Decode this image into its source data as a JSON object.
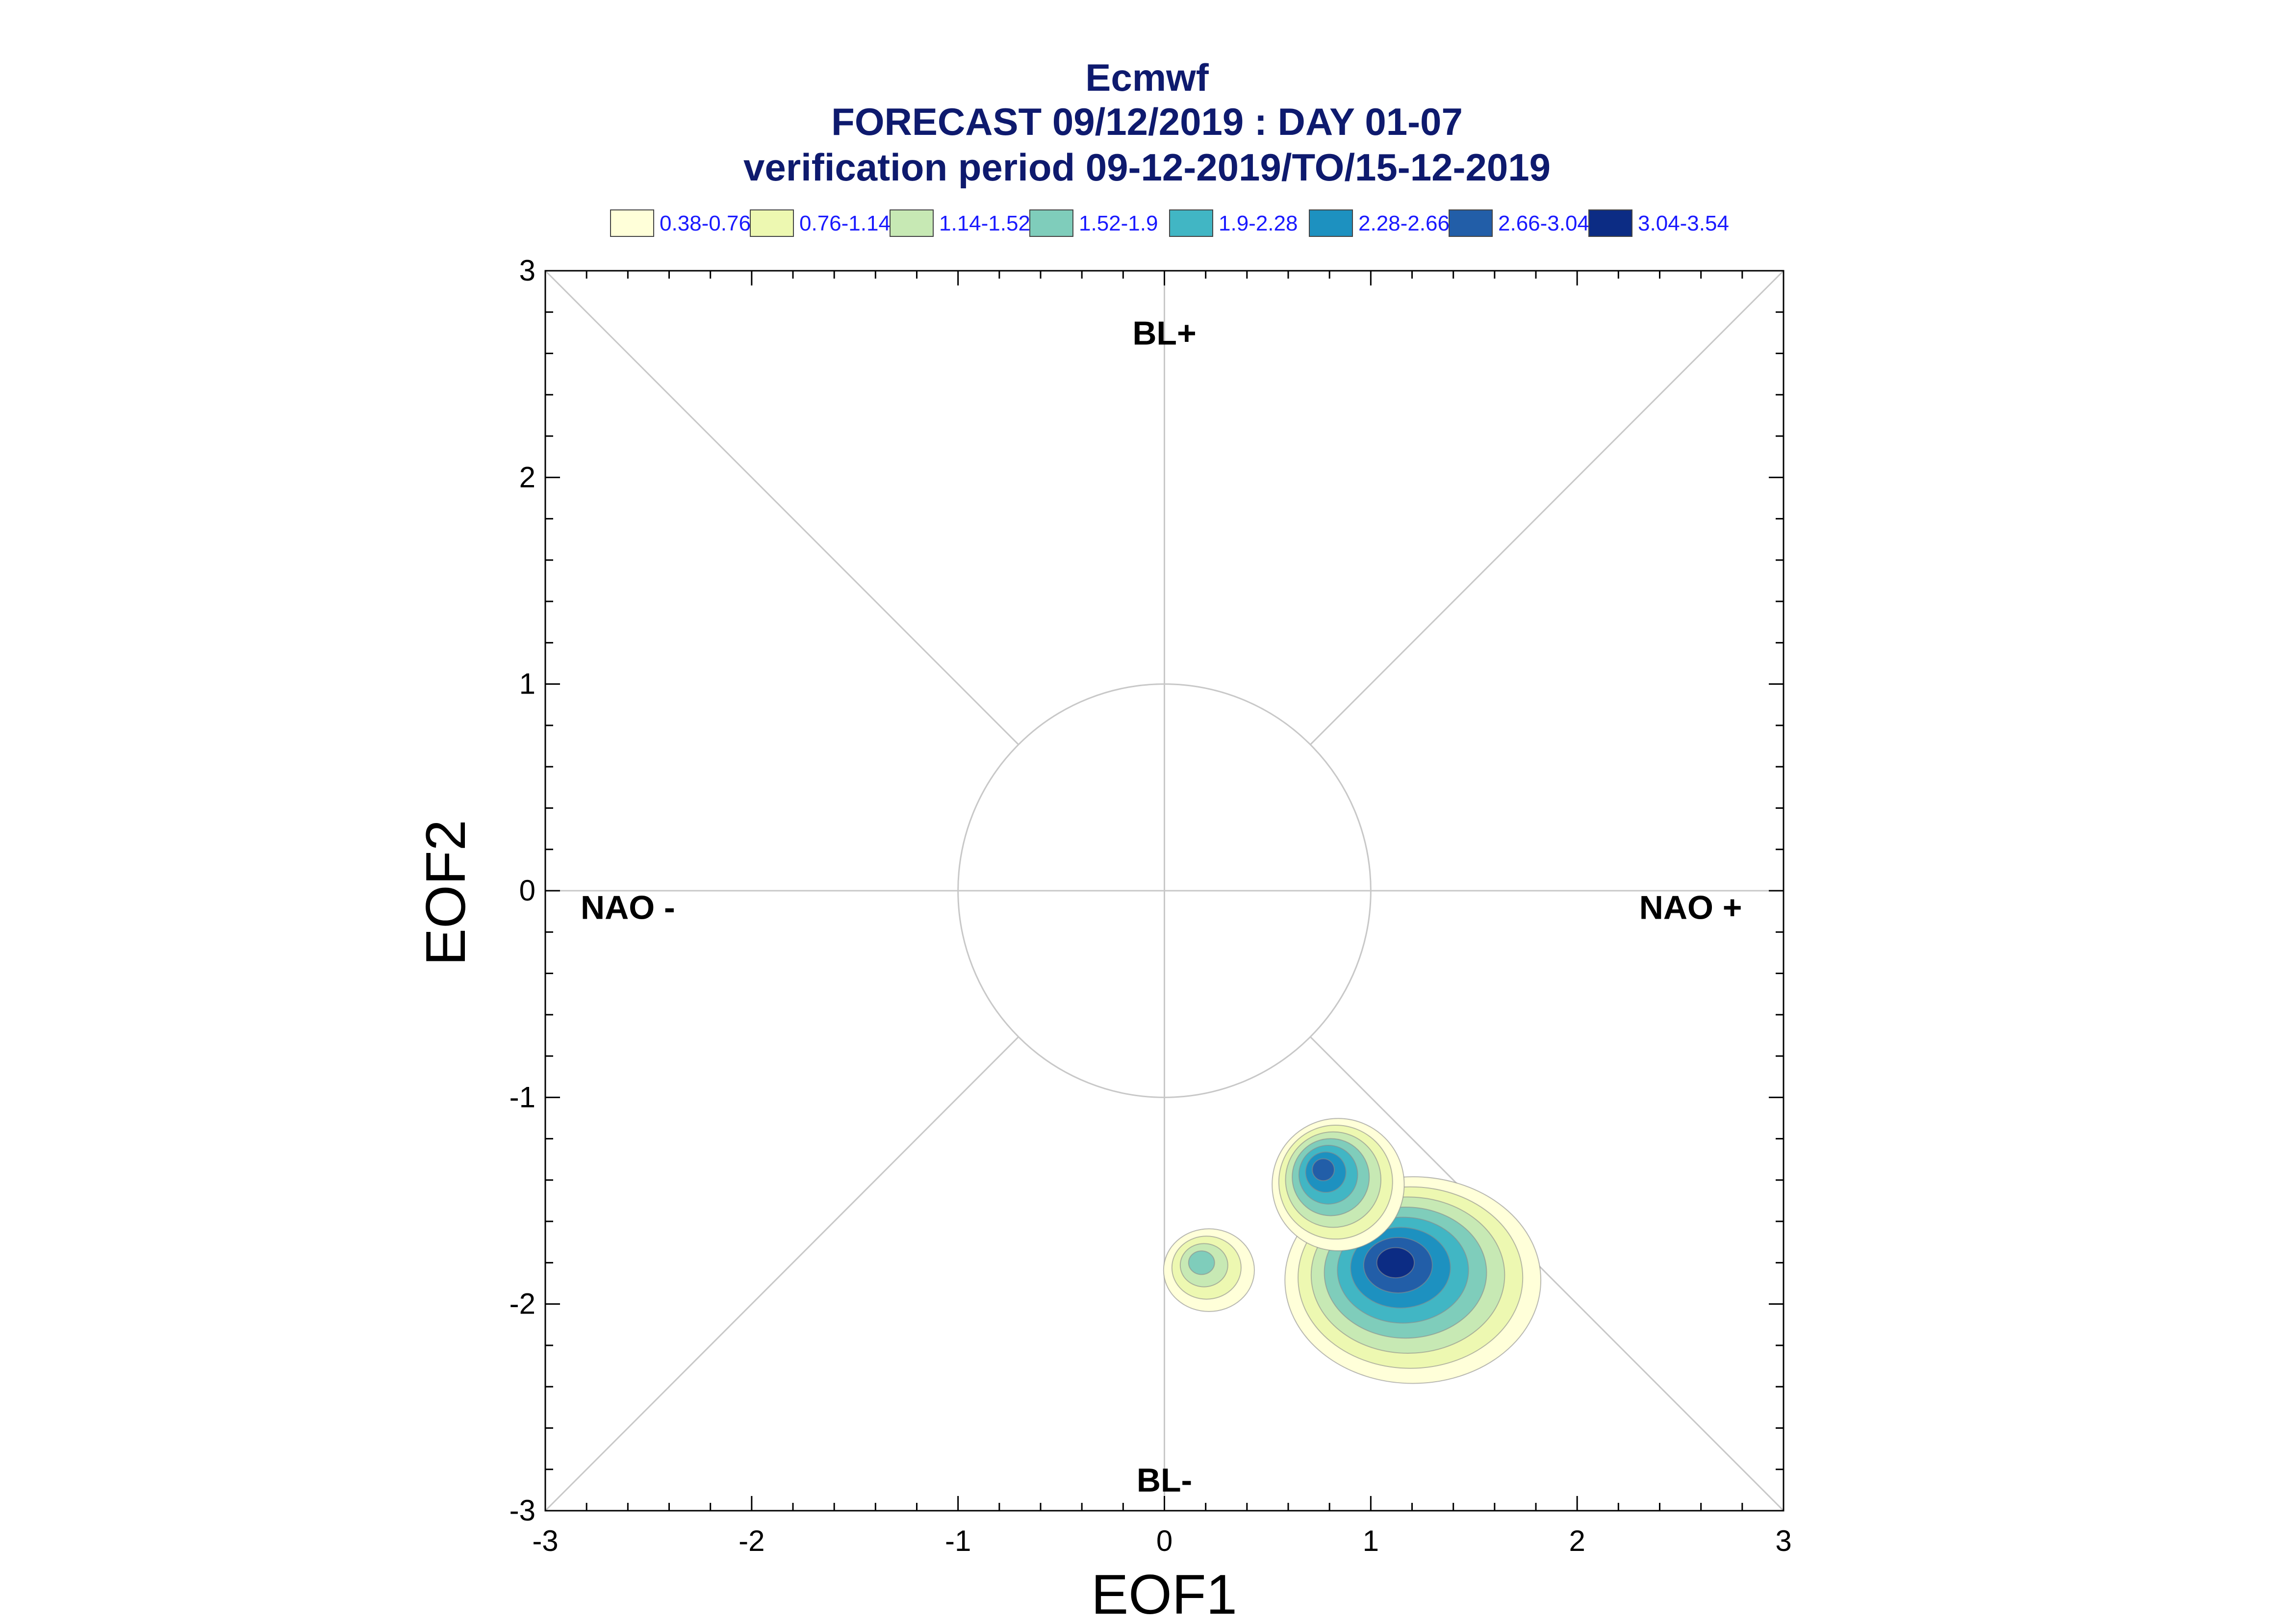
{
  "chart_data": {
    "type": "contour",
    "title": [
      "Ecmwf",
      "FORECAST 09/12/2019 : DAY 01-07",
      "verification period 09-12-2019/TO/15-12-2019"
    ],
    "xlabel": "EOF1",
    "ylabel": "EOF2",
    "xlim": [
      -3,
      3
    ],
    "ylim": [
      -3,
      3
    ],
    "xticks": [
      "-3",
      "-2",
      "-1",
      "0",
      "1",
      "2",
      "3"
    ],
    "yticks": [
      "-3",
      "-2",
      "-1",
      "0",
      "1",
      "2",
      "3"
    ],
    "legend_position": "top",
    "legend": [
      {
        "label": "0.38-0.76",
        "color": "#ffffd9"
      },
      {
        "label": "0.76-1.14",
        "color": "#edf8b1"
      },
      {
        "label": "1.14-1.52",
        "color": "#c7e9b4"
      },
      {
        "label": "1.52-1.9",
        "color": "#7fcdbb"
      },
      {
        "label": "1.9-2.28",
        "color": "#41b6c4"
      },
      {
        "label": "2.28-2.66",
        "color": "#1d91c0"
      },
      {
        "label": "2.66-3.04",
        "color": "#225ea8"
      },
      {
        "label": "3.04-3.54",
        "color": "#0c2c84"
      }
    ],
    "regions": [
      {
        "label": "BL+",
        "x": 0,
        "y": 2.7
      },
      {
        "label": "BL-",
        "x": 0,
        "y": -2.85
      },
      {
        "label": "NAO -",
        "x": -2.6,
        "y": -0.08
      },
      {
        "label": "NAO +",
        "x": 2.55,
        "y": -0.08
      }
    ],
    "reference_circle_radius": 1,
    "density_peaks": [
      {
        "x": 1.12,
        "y": -1.8,
        "peak_level": 7,
        "extent": [
          0.62,
          0.5
        ]
      },
      {
        "x": 0.77,
        "y": -1.35,
        "peak_level": 6,
        "extent": [
          0.32,
          0.32
        ]
      },
      {
        "x": 0.18,
        "y": -1.8,
        "peak_level": 3,
        "extent": [
          0.22,
          0.2
        ]
      }
    ]
  }
}
